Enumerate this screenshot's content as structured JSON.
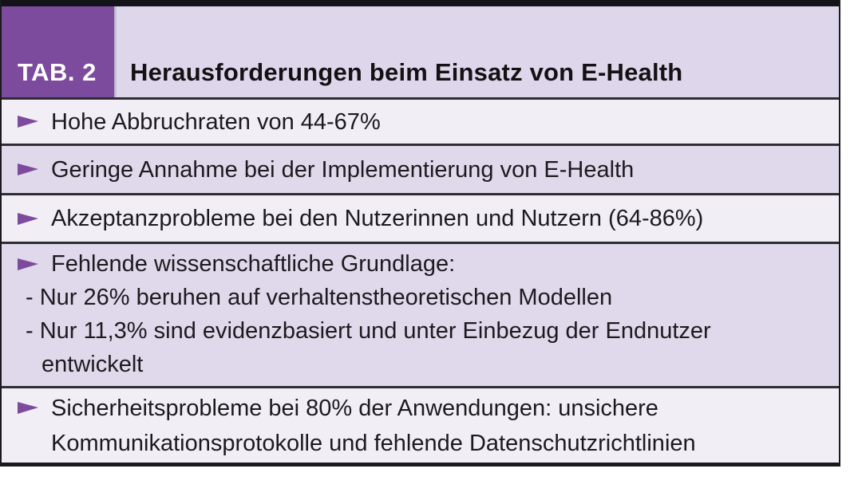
{
  "table": {
    "tag": "TAB. 2",
    "title": "Herausforderungen beim Einsatz von E-Health",
    "rows": [
      {
        "lines": [
          {
            "text": "Hohe Abbruchraten von 44-67%"
          }
        ]
      },
      {
        "lines": [
          {
            "text": "Geringe Annahme bei der Implementierung von E-Health"
          }
        ]
      },
      {
        "lines": [
          {
            "text": "Akzeptanzprobleme bei den Nutzerinnen und Nutzern (64-86%)"
          }
        ]
      },
      {
        "lines": [
          {
            "text": "Fehlende wissenschaftliche Grundlage:"
          },
          {
            "text": "- Nur 26% beruhen auf verhaltenstheoretischen Modellen"
          },
          {
            "text": "- Nur 11,3% sind evidenzbasiert und unter Einbezug der Endnutzer"
          },
          {
            "text": "entwickelt"
          }
        ]
      },
      {
        "lines": [
          {
            "text": "Sicherheitsprobleme bei 80% der Anwendungen: unsichere"
          },
          {
            "text": "Kommunikationsprotokolle und fehlende Datenschutzrichtlinien"
          }
        ]
      }
    ]
  },
  "colors": {
    "accent_purple": "#7d4b9d",
    "header_bg": "#ded6eb",
    "row_light": "#f1eef6",
    "row_dark": "#e0d8eb",
    "line_color": "#2e2d33",
    "text_color": "#1d1a1f"
  }
}
